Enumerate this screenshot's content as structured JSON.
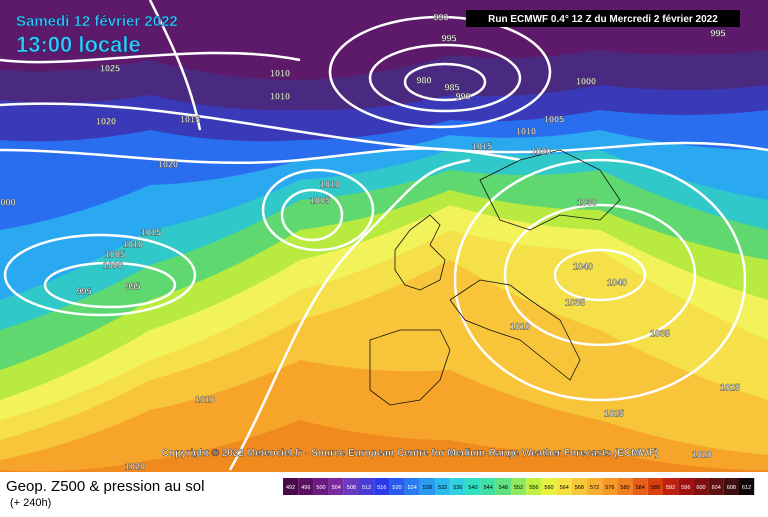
{
  "header": {
    "date": "Samedi 12 février 2022",
    "time": "13:00 locale",
    "run": "Run ECMWF 0.4° 12 Z du Mercredi 2 février 2022"
  },
  "isobar_labels": [
    "990",
    "995",
    "995",
    "1025",
    "1010",
    "1010",
    "980",
    "985",
    "990",
    "1000",
    "1020",
    "1015",
    "1005",
    "1010",
    "1015",
    "1020",
    "1020",
    "1010",
    "1005",
    "1030",
    "000",
    "1015",
    "1010",
    "1005",
    "1000",
    "995",
    "995",
    "1040",
    "1040",
    "1035",
    "1010",
    "1035",
    "1010",
    "1025",
    "1025",
    "1020",
    "1020"
  ],
  "copyright": "Copyright © 2022 Meteociel.fr - Source European Centre for Medium-Range Weather Forecasts (ECMWF)",
  "footer": {
    "title": "Geop. Z500 & pression au sol",
    "lead": "(+ 240h)"
  },
  "colorbar": [
    492,
    496,
    500,
    504,
    508,
    512,
    516,
    520,
    524,
    528,
    532,
    536,
    540,
    544,
    548,
    552,
    556,
    560,
    564,
    568,
    572,
    576,
    580,
    584,
    588,
    592,
    596,
    600,
    604,
    608,
    612
  ]
}
